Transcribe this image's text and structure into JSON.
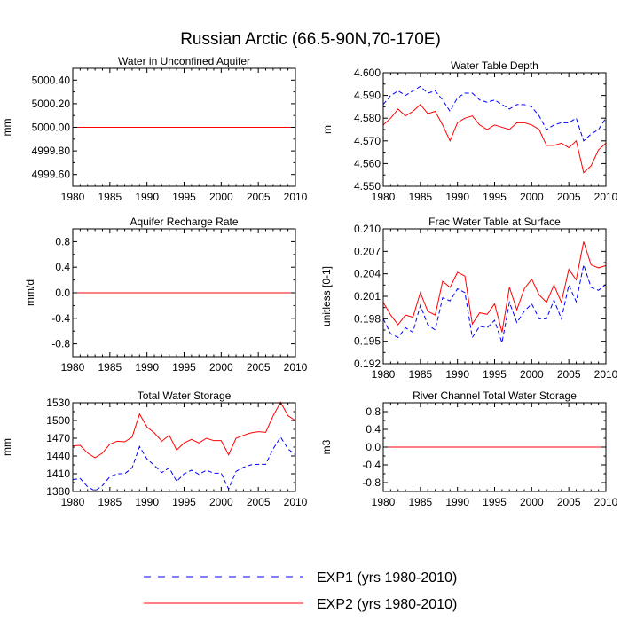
{
  "title": "Russian Arctic (66.5-90N,70-170E)",
  "legend": [
    {
      "label": "EXP1 (yrs 1980-2010)",
      "color": "#0000ff",
      "dash": "dashed"
    },
    {
      "label": "EXP2 (yrs 1980-2010)",
      "color": "#ff0000",
      "dash": "solid"
    }
  ],
  "chart_data": [
    {
      "type": "line",
      "title": "Water in Unconfined Aquifer",
      "ylabel": "mm",
      "xlim": [
        1980,
        2010
      ],
      "ylim": [
        4999.5,
        5000.5
      ],
      "xticks": [
        1980,
        1985,
        1990,
        1995,
        2000,
        2005,
        2010
      ],
      "yticks": [
        4999.6,
        4999.8,
        5000.0,
        5000.2,
        5000.4
      ],
      "ytick_labels": [
        "4999.60",
        "4999.80",
        "5000.00",
        "5000.20",
        "5000.40"
      ],
      "x": [
        1980,
        2010
      ],
      "series": [
        {
          "name": "EXP1 (yrs 1980-2010)",
          "values": [
            5000.0,
            5000.0
          ]
        },
        {
          "name": "EXP2 (yrs 1980-2010)",
          "values": [
            5000.0,
            5000.0
          ]
        }
      ]
    },
    {
      "type": "line",
      "title": "Water Table Depth",
      "ylabel": "m",
      "xlim": [
        1980,
        2010
      ],
      "ylim": [
        4.55,
        4.6
      ],
      "xticks": [
        1980,
        1985,
        1990,
        1995,
        2000,
        2005,
        2010
      ],
      "yticks": [
        4.55,
        4.56,
        4.57,
        4.58,
        4.59,
        4.6
      ],
      "ytick_labels": [
        "4.550",
        "4.560",
        "4.570",
        "4.580",
        "4.590",
        "4.600"
      ],
      "x": [
        1980,
        1981,
        1982,
        1983,
        1984,
        1985,
        1986,
        1987,
        1988,
        1989,
        1990,
        1991,
        1992,
        1993,
        1994,
        1995,
        1996,
        1997,
        1998,
        1999,
        2000,
        2001,
        2002,
        2003,
        2004,
        2005,
        2006,
        2007,
        2008,
        2009,
        2010
      ],
      "series": [
        {
          "name": "EXP1 (yrs 1980-2010)",
          "values": [
            4.586,
            4.59,
            4.592,
            4.59,
            4.592,
            4.594,
            4.591,
            4.592,
            4.588,
            4.583,
            4.589,
            4.591,
            4.591,
            4.588,
            4.587,
            4.588,
            4.586,
            4.584,
            4.586,
            4.586,
            4.585,
            4.581,
            4.575,
            4.577,
            4.578,
            4.578,
            4.58,
            4.57,
            4.573,
            4.575,
            4.58
          ]
        },
        {
          "name": "EXP2 (yrs 1980-2010)",
          "values": [
            4.577,
            4.58,
            4.584,
            4.581,
            4.583,
            4.586,
            4.582,
            4.583,
            4.577,
            4.57,
            4.578,
            4.58,
            4.581,
            4.577,
            4.575,
            4.577,
            4.576,
            4.575,
            4.578,
            4.578,
            4.577,
            4.575,
            4.568,
            4.568,
            4.569,
            4.567,
            4.57,
            4.556,
            4.559,
            4.566,
            4.569
          ]
        }
      ]
    },
    {
      "type": "line",
      "title": "Aquifer Recharge Rate",
      "ylabel": "mm/d",
      "xlim": [
        1980,
        2010
      ],
      "ylim": [
        -1,
        1
      ],
      "xticks": [
        1980,
        1985,
        1990,
        1995,
        2000,
        2005,
        2010
      ],
      "yticks": [
        -0.8,
        -0.4,
        0.0,
        0.4,
        0.8
      ],
      "ytick_labels": [
        "-0.8",
        "-0.4",
        "0.0",
        "0.4",
        "0.8"
      ],
      "x": [
        1980,
        2010
      ],
      "series": [
        {
          "name": "EXP1 (yrs 1980-2010)",
          "values": [
            0,
            0
          ]
        },
        {
          "name": "EXP2 (yrs 1980-2010)",
          "values": [
            0,
            0
          ]
        }
      ]
    },
    {
      "type": "line",
      "title": "Frac Water Table at Surface",
      "ylabel": "unitless [0-1]",
      "xlim": [
        1980,
        2010
      ],
      "ylim": [
        0.192,
        0.21
      ],
      "xticks": [
        1980,
        1985,
        1990,
        1995,
        2000,
        2005,
        2010
      ],
      "yticks": [
        0.192,
        0.195,
        0.198,
        0.201,
        0.204,
        0.207,
        0.21
      ],
      "ytick_labels": [
        "0.192",
        "0.195",
        "0.198",
        "0.201",
        "0.204",
        "0.207",
        "0.210"
      ],
      "x": [
        1980,
        1981,
        1982,
        1983,
        1984,
        1985,
        1986,
        1987,
        1988,
        1989,
        1990,
        1991,
        1992,
        1993,
        1994,
        1995,
        1996,
        1997,
        1998,
        1999,
        2000,
        2001,
        2002,
        2003,
        2004,
        2005,
        2006,
        2007,
        2008,
        2009,
        2010
      ],
      "series": [
        {
          "name": "EXP1 (yrs 1980-2010)",
          "values": [
            0.198,
            0.196,
            0.1955,
            0.1968,
            0.1962,
            0.1998,
            0.1972,
            0.1965,
            0.2008,
            0.2004,
            0.202,
            0.2015,
            0.1955,
            0.197,
            0.1968,
            0.1978,
            0.1948,
            0.2002,
            0.1975,
            0.199,
            0.2,
            0.198,
            0.198,
            0.2005,
            0.198,
            0.2025,
            0.2003,
            0.2052,
            0.2022,
            0.2018,
            0.2026
          ]
        },
        {
          "name": "EXP2 (yrs 1980-2010)",
          "values": [
            0.2002,
            0.1985,
            0.1972,
            0.1985,
            0.1982,
            0.2015,
            0.199,
            0.1985,
            0.203,
            0.2022,
            0.2042,
            0.2037,
            0.1973,
            0.1988,
            0.1986,
            0.2,
            0.1962,
            0.2022,
            0.1992,
            0.202,
            0.2033,
            0.2012,
            0.2002,
            0.2025,
            0.2002,
            0.2046,
            0.2032,
            0.2083,
            0.2052,
            0.2048,
            0.2051
          ]
        }
      ]
    },
    {
      "type": "line",
      "title": "Total Water Storage",
      "ylabel": "mm",
      "xlim": [
        1980,
        2010
      ],
      "ylim": [
        1380,
        1530
      ],
      "xticks": [
        1980,
        1985,
        1990,
        1995,
        2000,
        2005,
        2010
      ],
      "yticks": [
        1380,
        1410,
        1440,
        1470,
        1500,
        1530
      ],
      "ytick_labels": [
        "1380",
        "1410",
        "1440",
        "1470",
        "1500",
        "1530"
      ],
      "x": [
        1980,
        1981,
        1982,
        1983,
        1984,
        1985,
        1986,
        1987,
        1988,
        1989,
        1990,
        1991,
        1992,
        1993,
        1994,
        1995,
        1996,
        1997,
        1998,
        1999,
        2000,
        2001,
        2002,
        2003,
        2004,
        2005,
        2006,
        2007,
        2008,
        2009,
        2010
      ],
      "series": [
        {
          "name": "EXP1 (yrs 1980-2010)",
          "values": [
            1400,
            1402,
            1388,
            1381,
            1390,
            1405,
            1410,
            1410,
            1420,
            1456,
            1435,
            1424,
            1412,
            1420,
            1397,
            1410,
            1416,
            1409,
            1416,
            1411,
            1411,
            1384,
            1414,
            1421,
            1425,
            1426,
            1426,
            1452,
            1472,
            1452,
            1442
          ]
        },
        {
          "name": "EXP2 (yrs 1980-2010)",
          "values": [
            1457,
            1458,
            1445,
            1437,
            1445,
            1460,
            1465,
            1464,
            1472,
            1511,
            1489,
            1479,
            1465,
            1475,
            1450,
            1462,
            1468,
            1462,
            1470,
            1466,
            1466,
            1442,
            1470,
            1475,
            1479,
            1481,
            1480,
            1508,
            1531,
            1508,
            1500
          ]
        }
      ]
    },
    {
      "type": "line",
      "title": "River Channel Total Water Storage",
      "ylabel": "m3",
      "xlim": [
        1980,
        2010
      ],
      "ylim": [
        -1,
        1
      ],
      "xticks": [
        1980,
        1985,
        1990,
        1995,
        2000,
        2005,
        2010
      ],
      "yticks": [
        -0.8,
        -0.4,
        0.0,
        0.4,
        0.8
      ],
      "ytick_labels": [
        "-0.8",
        "-0.4",
        "0.0",
        "0.4",
        "0.8"
      ],
      "x": [
        1980,
        2010
      ],
      "series": [
        {
          "name": "EXP1 (yrs 1980-2010)",
          "values": [
            0,
            0
          ]
        },
        {
          "name": "EXP2 (yrs 1980-2010)",
          "values": [
            0,
            0
          ]
        }
      ]
    }
  ]
}
